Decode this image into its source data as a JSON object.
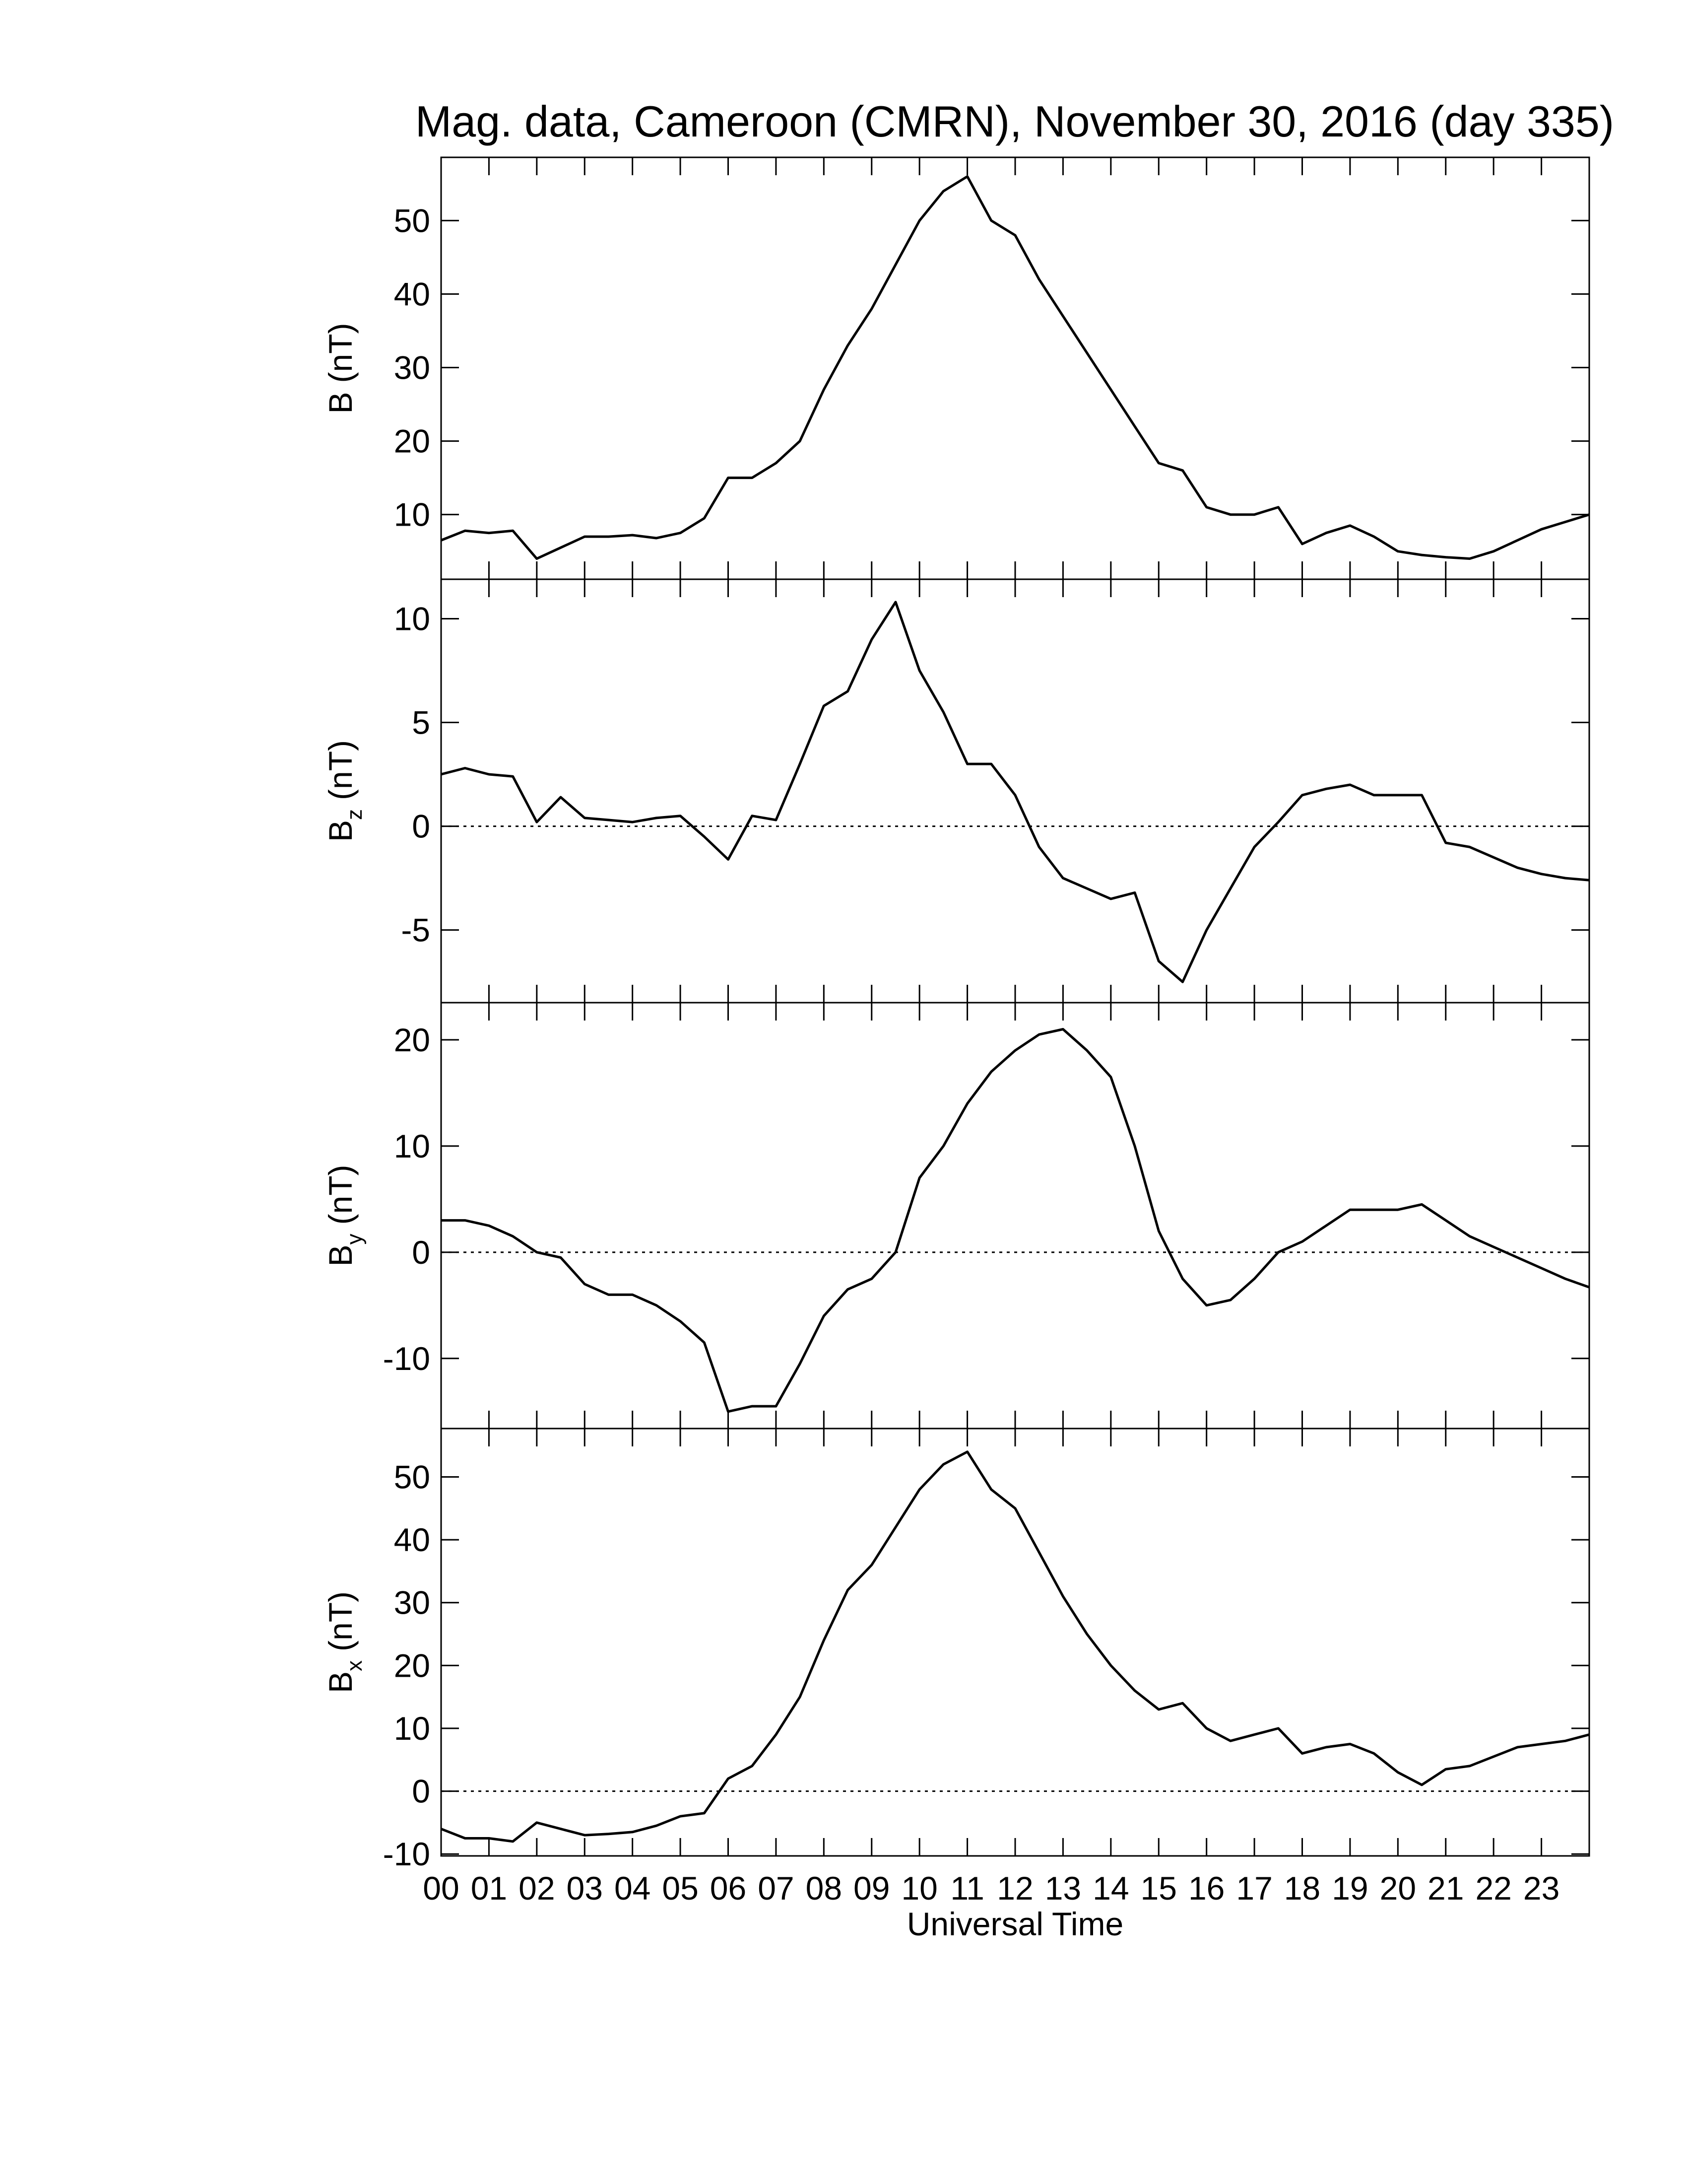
{
  "title": "Mag. data, Cameroon (CMRN), November 30, 2016 (day 335)",
  "chart_data": [
    {
      "type": "line",
      "ylabel": [
        "B",
        "(nT)"
      ],
      "xlim": [
        0,
        24
      ],
      "xticks": [
        0,
        1,
        2,
        3,
        4,
        5,
        6,
        7,
        8,
        9,
        10,
        11,
        12,
        13,
        14,
        15,
        16,
        17,
        18,
        19,
        20,
        21,
        22,
        23
      ],
      "ylim": [
        1.2,
        58.6
      ],
      "yticks": [
        10,
        20,
        30,
        40,
        50
      ],
      "zero_line": false,
      "x": [
        0,
        0.5,
        1,
        1.5,
        2,
        2.5,
        3,
        3.5,
        4,
        4.5,
        5,
        5.5,
        6,
        6.5,
        7,
        7.5,
        8,
        8.5,
        9,
        9.5,
        10,
        10.5,
        11,
        11.5,
        12,
        12.5,
        13,
        13.5,
        14,
        14.5,
        15,
        15.5,
        16,
        16.5,
        17,
        17.5,
        18,
        18.5,
        19,
        19.5,
        20,
        20.5,
        21,
        21.5,
        22,
        22.5,
        23,
        23.5,
        24
      ],
      "series": [
        {
          "color": "#000000",
          "values": [
            6.5,
            7.8,
            7.5,
            7.8,
            4,
            5.5,
            7,
            7,
            7.2,
            6.8,
            7.5,
            9.5,
            15,
            15,
            17,
            20,
            27,
            33,
            38,
            44,
            50,
            54,
            56,
            50,
            48,
            42,
            37,
            32,
            27,
            22,
            17,
            16,
            11,
            10,
            10,
            11,
            6,
            7.5,
            8.5,
            7,
            5,
            4.5,
            4.2,
            4,
            5,
            6.5,
            8,
            9,
            10
          ]
        }
      ]
    },
    {
      "type": "line",
      "ylabel": [
        "B",
        "z",
        "(nT)"
      ],
      "xlim": [
        0,
        24
      ],
      "xticks": [
        0,
        1,
        2,
        3,
        4,
        5,
        6,
        7,
        8,
        9,
        10,
        11,
        12,
        13,
        14,
        15,
        16,
        17,
        18,
        19,
        20,
        21,
        22,
        23
      ],
      "ylim": [
        -8.5,
        11.9
      ],
      "yticks": [
        -5,
        0,
        5,
        10
      ],
      "zero_line": true,
      "x": [
        0,
        0.5,
        1,
        1.5,
        2,
        2.5,
        3,
        3.5,
        4,
        4.5,
        5,
        5.5,
        6,
        6.5,
        7,
        7.5,
        8,
        8.5,
        9,
        9.5,
        10,
        10.5,
        11,
        11.5,
        12,
        12.5,
        13,
        13.5,
        14,
        14.5,
        15,
        15.5,
        16,
        16.5,
        17,
        17.5,
        18,
        18.5,
        19,
        19.5,
        20,
        20.5,
        21,
        21.5,
        22,
        22.5,
        23,
        23.5,
        24
      ],
      "series": [
        {
          "color": "#000000",
          "values": [
            2.5,
            2.8,
            2.5,
            2.4,
            0.2,
            1.4,
            0.4,
            0.3,
            0.2,
            0.4,
            0.5,
            -0.5,
            -1.6,
            0.5,
            0.3,
            3,
            5.8,
            6.5,
            9,
            10.8,
            7.5,
            5.5,
            3,
            3,
            1.5,
            -1,
            -2.5,
            -3,
            -3.5,
            -3.2,
            -6.5,
            -7.5,
            -5,
            -3,
            -1,
            0.2,
            1.5,
            1.8,
            2,
            1.5,
            1.5,
            1.5,
            -0.8,
            -1,
            -1.5,
            -2,
            -2.3,
            -2.5,
            -2.6
          ]
        }
      ]
    },
    {
      "type": "line",
      "ylabel": [
        "B",
        "y",
        "(nT)"
      ],
      "xlim": [
        0,
        24
      ],
      "xticks": [
        0,
        1,
        2,
        3,
        4,
        5,
        6,
        7,
        8,
        9,
        10,
        11,
        12,
        13,
        14,
        15,
        16,
        17,
        18,
        19,
        20,
        21,
        22,
        23
      ],
      "ylim": [
        -16.6,
        23.5
      ],
      "yticks": [
        -10,
        0,
        10,
        20
      ],
      "zero_line": true,
      "x": [
        0,
        0.5,
        1,
        1.5,
        2,
        2.5,
        3,
        3.5,
        4,
        4.5,
        5,
        5.5,
        6,
        6.5,
        7,
        7.5,
        8,
        8.5,
        9,
        9.5,
        10,
        10.5,
        11,
        11.5,
        12,
        12.5,
        13,
        13.5,
        14,
        14.5,
        15,
        15.5,
        16,
        16.5,
        17,
        17.5,
        18,
        18.5,
        19,
        19.5,
        20,
        20.5,
        21,
        21.5,
        22,
        22.5,
        23,
        23.5,
        24
      ],
      "series": [
        {
          "color": "#000000",
          "values": [
            3,
            3,
            2.5,
            1.5,
            0,
            -0.5,
            -3,
            -4,
            -4,
            -5,
            -6.5,
            -8.5,
            -15,
            -14.5,
            -14.5,
            -10.5,
            -6,
            -3.5,
            -2.5,
            0,
            7,
            10,
            14,
            17,
            19,
            20.5,
            21,
            19,
            16.5,
            10,
            2,
            -2.5,
            -5,
            -4.5,
            -2.5,
            0,
            1,
            2.5,
            4,
            4,
            4,
            4.5,
            3,
            1.5,
            0.5,
            -0.5,
            -1.5,
            -2.5,
            -3.3
          ]
        }
      ]
    },
    {
      "type": "line",
      "ylabel": [
        "B",
        "x",
        "(nT)"
      ],
      "xlabel": "Universal Time",
      "xlim": [
        0,
        24
      ],
      "xticks": [
        {
          "value": 0,
          "label": "00"
        },
        {
          "value": 1,
          "label": "01"
        },
        {
          "value": 2,
          "label": "02"
        },
        {
          "value": 3,
          "label": "03"
        },
        {
          "value": 4,
          "label": "04"
        },
        {
          "value": 5,
          "label": "05"
        },
        {
          "value": 6,
          "label": "06"
        },
        {
          "value": 7,
          "label": "07"
        },
        {
          "value": 8,
          "label": "08"
        },
        {
          "value": 9,
          "label": "09"
        },
        {
          "value": 10,
          "label": "10"
        },
        {
          "value": 11,
          "label": "11"
        },
        {
          "value": 12,
          "label": "12"
        },
        {
          "value": 13,
          "label": "13"
        },
        {
          "value": 14,
          "label": "14"
        },
        {
          "value": 15,
          "label": "15"
        },
        {
          "value": 16,
          "label": "16"
        },
        {
          "value": 17,
          "label": "17"
        },
        {
          "value": 18,
          "label": "18"
        },
        {
          "value": 19,
          "label": "19"
        },
        {
          "value": 20,
          "label": "20"
        },
        {
          "value": 21,
          "label": "21"
        },
        {
          "value": 22,
          "label": "22"
        },
        {
          "value": 23,
          "label": "23"
        }
      ],
      "ylim": [
        -10.3,
        57.7
      ],
      "yticks": [
        -10,
        0,
        10,
        20,
        30,
        40,
        50
      ],
      "zero_line": true,
      "x": [
        0,
        0.5,
        1,
        1.5,
        2,
        2.5,
        3,
        3.5,
        4,
        4.5,
        5,
        5.5,
        6,
        6.5,
        7,
        7.5,
        8,
        8.5,
        9,
        9.5,
        10,
        10.5,
        11,
        11.5,
        12,
        12.5,
        13,
        13.5,
        14,
        14.5,
        15,
        15.5,
        16,
        16.5,
        17,
        17.5,
        18,
        18.5,
        19,
        19.5,
        20,
        20.5,
        21,
        21.5,
        22,
        22.5,
        23,
        23.5,
        24
      ],
      "series": [
        {
          "color": "#000000",
          "values": [
            -6,
            -7.5,
            -7.5,
            -8,
            -5,
            -6,
            -7,
            -6.8,
            -6.5,
            -5.5,
            -4,
            -3.5,
            2,
            4,
            9,
            15,
            24,
            32,
            36,
            42,
            48,
            52,
            54,
            48,
            45,
            38,
            31,
            25,
            20,
            16,
            13,
            14,
            10,
            8,
            9,
            10,
            6,
            7,
            7.5,
            6,
            3,
            1,
            3.5,
            4,
            5.5,
            7,
            7.5,
            8,
            9
          ]
        }
      ]
    }
  ]
}
